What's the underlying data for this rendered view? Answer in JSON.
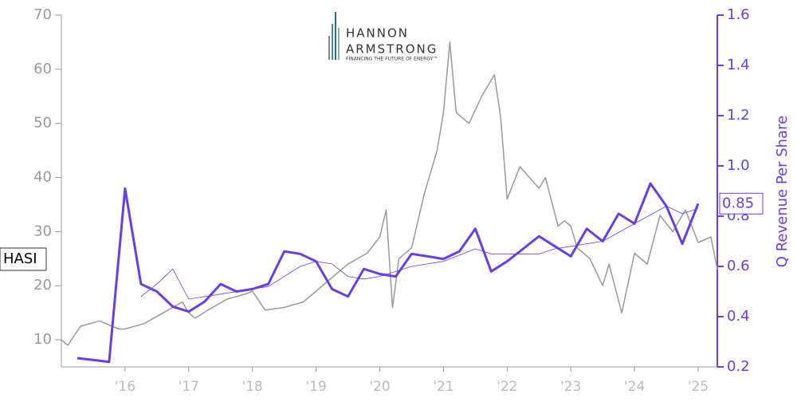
{
  "chart_data": {
    "type": "line",
    "logo": {
      "line1": "HANNON",
      "line2": "ARMSTRONG",
      "tagline": "FINANCING THE FUTURE OF ENERGY™"
    },
    "y2_label": "Q Revenue Per Share",
    "ticker_label": "HASI",
    "last_value_label": 0.85,
    "xlim": [
      2015,
      2025.3
    ],
    "xticks": [
      {
        "value": 2016,
        "label": "'16"
      },
      {
        "value": 2017,
        "label": "'17"
      },
      {
        "value": 2018,
        "label": "'18"
      },
      {
        "value": 2019,
        "label": "'19"
      },
      {
        "value": 2020,
        "label": "'20"
      },
      {
        "value": 2021,
        "label": "'21"
      },
      {
        "value": 2022,
        "label": "'22"
      },
      {
        "value": 2023,
        "label": "'23"
      },
      {
        "value": 2024,
        "label": "'24"
      },
      {
        "value": 2025,
        "label": "'25"
      }
    ],
    "ylim": [
      5,
      70
    ],
    "yticks": [
      10,
      20,
      30,
      40,
      50,
      60,
      70
    ],
    "y2lim": [
      0.2,
      1.6
    ],
    "y2ticks": [
      {
        "value": 0.2,
        "label": "0.2"
      },
      {
        "value": 0.4,
        "label": "0.4"
      },
      {
        "value": 0.6,
        "label": "0.6"
      },
      {
        "value": 0.8,
        "label": "0.8"
      },
      {
        "value": 1.0,
        "label": "1.0"
      },
      {
        "value": 1.2,
        "label": "1.2"
      },
      {
        "value": 1.4,
        "label": "1.4"
      },
      {
        "value": 1.6,
        "label": "1.6"
      }
    ],
    "series": [
      {
        "color": "#999999",
        "width": 1.5,
        "x": [
          2015.0,
          2015.1,
          2015.3,
          2015.6,
          2015.9,
          2016.0,
          2016.3,
          2016.6,
          2016.9,
          2017.0,
          2017.1,
          2017.3,
          2017.6,
          2017.9,
          2018.0,
          2018.2,
          2018.5,
          2018.8,
          2019.0,
          2019.2,
          2019.5,
          2019.8,
          2020.0,
          2020.1,
          2020.2,
          2020.3,
          2020.5,
          2020.7,
          2020.9,
          2021.0,
          2021.1,
          2021.2,
          2021.4,
          2021.6,
          2021.8,
          2021.9,
          2022.0,
          2022.2,
          2022.5,
          2022.6,
          2022.8,
          2022.9,
          2023.0,
          2023.1,
          2023.3,
          2023.5,
          2023.6,
          2023.8,
          2024.0,
          2024.2,
          2024.4,
          2024.6,
          2024.8,
          2025.0,
          2025.2,
          2025.3
        ],
        "values": [
          10,
          9,
          12.5,
          13.5,
          12,
          12,
          13,
          15,
          17,
          15,
          14,
          15.5,
          17.5,
          18.5,
          19,
          15.5,
          16,
          17,
          19,
          21,
          24,
          26,
          29,
          34,
          16,
          25,
          27,
          37,
          45,
          52,
          65,
          52,
          50,
          55,
          59,
          51,
          36,
          42,
          38,
          40,
          31,
          32,
          31,
          27,
          25,
          20,
          24,
          15,
          26,
          24,
          33,
          30,
          34,
          28,
          29,
          23
        ]
      },
      {
        "color": "#6a3de8",
        "width": 3,
        "axis": "y2",
        "x": [
          2015.25,
          2015.75,
          2016.0,
          2016.25,
          2016.5,
          2016.75,
          2017.0,
          2017.25,
          2017.5,
          2017.75,
          2018.0,
          2018.25,
          2018.5,
          2018.75,
          2019.0,
          2019.25,
          2019.5,
          2019.75,
          2020.0,
          2020.25,
          2020.5,
          2020.75,
          2021.0,
          2021.25,
          2021.5,
          2021.75,
          2022.0,
          2022.25,
          2022.5,
          2022.75,
          2023.0,
          2023.25,
          2023.5,
          2023.75,
          2024.0,
          2024.25,
          2024.5,
          2024.75,
          2025.0
        ],
        "values": [
          0.235,
          0.22,
          0.91,
          0.53,
          0.5,
          0.44,
          0.42,
          0.46,
          0.53,
          0.5,
          0.51,
          0.53,
          0.66,
          0.65,
          0.62,
          0.51,
          0.48,
          0.59,
          0.57,
          0.56,
          0.65,
          0.64,
          0.63,
          0.66,
          0.75,
          0.58,
          0.62,
          0.67,
          0.72,
          0.68,
          0.64,
          0.75,
          0.7,
          0.81,
          0.77,
          0.93,
          0.84,
          0.69,
          0.85
        ]
      },
      {
        "color": "#6a3de8",
        "width": 0.8,
        "axis": "y2",
        "x": [
          2016.25,
          2016.5,
          2016.75,
          2017.0,
          2017.5,
          2018.0,
          2018.25,
          2018.75,
          2019.0,
          2019.25,
          2019.5,
          2019.75,
          2020.0,
          2020.5,
          2021.0,
          2021.5,
          2021.75,
          2022.5,
          2022.75,
          2023.0,
          2023.5,
          2024.0,
          2024.5,
          2024.75,
          2025.0
        ],
        "values": [
          0.48,
          0.53,
          0.59,
          0.47,
          0.49,
          0.51,
          0.52,
          0.6,
          0.62,
          0.61,
          0.56,
          0.55,
          0.56,
          0.6,
          0.62,
          0.67,
          0.65,
          0.65,
          0.67,
          0.68,
          0.7,
          0.77,
          0.84,
          0.81,
          0.83
        ]
      }
    ]
  }
}
